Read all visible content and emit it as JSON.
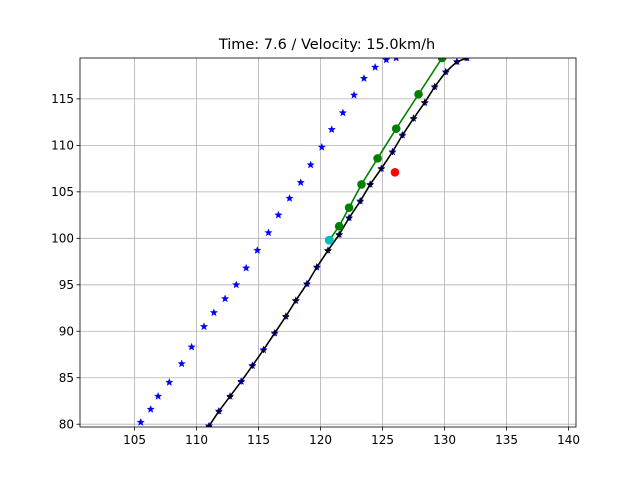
{
  "chart_data": {
    "type": "scatter",
    "title": "Time: 7.6 / Velocity: 15.0km/h",
    "xlabel": "",
    "ylabel": "",
    "xlim": [
      100.6,
      140.6
    ],
    "ylim": [
      79.7,
      119.4
    ],
    "grid": true,
    "x_ticks": [
      105,
      110,
      115,
      120,
      125,
      130,
      135,
      140
    ],
    "y_ticks": [
      80,
      85,
      90,
      95,
      100,
      105,
      110,
      115
    ],
    "x_tick_labels": [
      "105",
      "110",
      "115",
      "120",
      "125",
      "130",
      "135",
      "140"
    ],
    "y_tick_labels": [
      "80",
      "85",
      "90",
      "95",
      "100",
      "105",
      "110",
      "115"
    ],
    "colors": {
      "left_boundary": "#0000ff",
      "right_boundary": "#0000ff",
      "reference_path": "#000000",
      "predicted_trajectory": "#008000",
      "vehicle": "#00bfbf",
      "target": "#ff0000"
    },
    "series": [
      {
        "id": "left_boundary",
        "marker": "star",
        "line": false,
        "x": [
          105.5,
          106.3,
          106.9,
          107.8,
          108.8,
          109.6,
          110.6,
          111.4,
          112.3,
          113.2,
          114.0,
          114.9,
          115.8,
          116.6,
          117.5,
          118.4,
          119.2,
          120.1,
          120.9,
          121.8,
          122.7,
          123.5,
          124.4,
          125.3,
          126.1
        ],
        "y": [
          80.2,
          81.6,
          83.0,
          84.5,
          86.5,
          88.3,
          90.5,
          92.0,
          93.5,
          95.0,
          96.8,
          98.7,
          100.6,
          102.5,
          104.3,
          106.0,
          107.9,
          109.8,
          111.7,
          113.5,
          115.4,
          117.2,
          118.4,
          119.2,
          119.4
        ]
      },
      {
        "id": "right_boundary",
        "marker": "star",
        "line": false,
        "x": [
          111.0,
          111.8,
          112.7,
          113.6,
          114.5,
          115.4,
          116.3,
          117.2,
          118.0,
          118.9,
          119.7,
          120.6,
          121.5,
          122.3,
          123.2,
          124.0,
          124.9,
          125.8,
          126.6,
          127.5,
          128.4,
          129.2,
          130.1,
          131.0,
          131.8
        ],
        "y": [
          79.8,
          81.4,
          83.0,
          84.6,
          86.3,
          88.0,
          89.8,
          91.6,
          93.3,
          95.1,
          96.9,
          98.7,
          100.4,
          102.2,
          104.0,
          105.8,
          107.5,
          109.3,
          111.1,
          112.9,
          114.6,
          116.3,
          117.9,
          119.0,
          119.4
        ]
      },
      {
        "id": "reference_path",
        "marker": "plus",
        "line": true,
        "x": [
          111.0,
          111.8,
          112.7,
          113.6,
          114.5,
          115.4,
          116.3,
          117.2,
          118.0,
          118.9,
          119.7,
          120.6,
          121.5,
          122.3,
          123.2,
          124.0,
          124.9,
          125.8,
          126.6,
          127.5,
          128.4,
          129.2,
          130.1,
          131.0,
          131.8
        ],
        "y": [
          79.8,
          81.4,
          83.0,
          84.6,
          86.3,
          88.0,
          89.8,
          91.6,
          93.3,
          95.1,
          96.9,
          98.7,
          100.4,
          102.2,
          104.0,
          105.8,
          107.5,
          109.3,
          111.1,
          112.9,
          114.6,
          116.3,
          117.9,
          119.0,
          119.4
        ]
      },
      {
        "id": "predicted_trajectory",
        "marker": "circle",
        "line": true,
        "x": [
          120.7,
          121.5,
          122.3,
          123.3,
          124.6,
          126.1,
          127.9,
          129.8
        ],
        "y": [
          99.8,
          101.3,
          103.3,
          105.8,
          108.6,
          111.8,
          115.5,
          119.4
        ]
      },
      {
        "id": "vehicle",
        "marker": "circle",
        "line": false,
        "x": [
          120.7
        ],
        "y": [
          99.8
        ]
      },
      {
        "id": "target",
        "marker": "circle",
        "line": false,
        "x": [
          126.0
        ],
        "y": [
          107.1
        ]
      }
    ]
  }
}
